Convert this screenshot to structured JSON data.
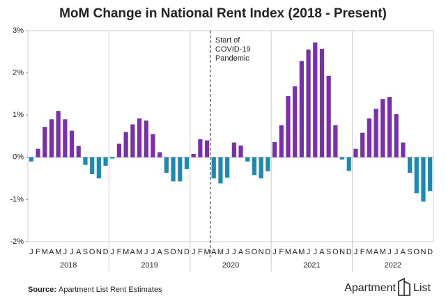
{
  "chart_data": {
    "type": "bar",
    "title": "MoM Change in National Rent Index (2018 - Present)",
    "categories": [
      "J",
      "F",
      "M",
      "A",
      "M",
      "J",
      "J",
      "A",
      "S",
      "O",
      "N",
      "D",
      "J",
      "F",
      "M",
      "A",
      "M",
      "J",
      "J",
      "A",
      "S",
      "O",
      "N",
      "D",
      "J",
      "F",
      "M",
      "A",
      "M",
      "J",
      "J",
      "A",
      "S",
      "O",
      "N",
      "D",
      "J",
      "F",
      "M",
      "A",
      "M",
      "J",
      "J",
      "A",
      "S",
      "O",
      "N",
      "D",
      "J",
      "F",
      "M",
      "A",
      "M",
      "J",
      "J",
      "A",
      "S",
      "O",
      "N",
      "D"
    ],
    "groups": [
      "2018",
      "2019",
      "2020",
      "2021",
      "2022"
    ],
    "values": [
      -0.1,
      0.2,
      0.72,
      0.9,
      1.1,
      0.9,
      0.63,
      0.27,
      -0.18,
      -0.4,
      -0.5,
      -0.2,
      -0.03,
      0.32,
      0.6,
      0.78,
      0.92,
      0.87,
      0.55,
      0.12,
      -0.37,
      -0.57,
      -0.57,
      -0.28,
      0.08,
      0.43,
      0.4,
      -0.5,
      -0.62,
      -0.48,
      0.35,
      0.28,
      -0.1,
      -0.42,
      -0.5,
      -0.33,
      0.36,
      0.76,
      1.45,
      1.68,
      2.28,
      2.55,
      2.72,
      2.57,
      1.93,
      0.76,
      -0.05,
      -0.32,
      0.2,
      0.58,
      0.92,
      1.15,
      1.38,
      1.43,
      1.02,
      0.35,
      -0.37,
      -0.85,
      -1.05,
      -0.8
    ],
    "positive_color": "#7a2fb0",
    "negative_color": "#1a8ab5",
    "ylim": [
      -2,
      3
    ],
    "yticks": [
      {
        "value": -2,
        "label": "-2%"
      },
      {
        "value": -1,
        "label": "-1%"
      },
      {
        "value": 0,
        "label": "0%"
      },
      {
        "value": 1,
        "label": "1%"
      },
      {
        "value": 2,
        "label": "2%"
      },
      {
        "value": 3,
        "label": "3%"
      }
    ],
    "annotation": [
      "Start of",
      "COVID-19",
      "Pandemic"
    ],
    "source_label": "Source:",
    "source": "Apartment List Rent Estimates",
    "logo": [
      "Apartment",
      "List"
    ]
  }
}
